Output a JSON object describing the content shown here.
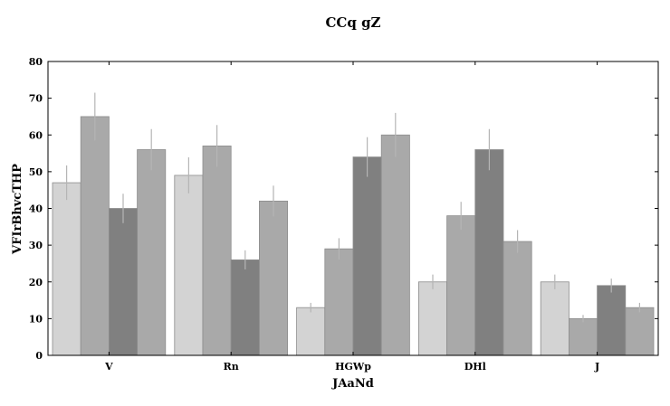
{
  "chart_data": {
    "type": "bar",
    "title": "CCq gZ",
    "xlabel": "JAaNd",
    "ylabel": "VFIrBhvcTHP",
    "categories": [
      "V",
      "Rn",
      "HGWp",
      "DHl",
      "J"
    ],
    "ylim": [
      0,
      80
    ],
    "yticks": [
      0,
      10,
      20,
      30,
      40,
      50,
      60,
      70,
      80
    ],
    "grid": false,
    "legend": "none",
    "series": [
      {
        "color": "#d3d3d3",
        "values": [
          47,
          49,
          13,
          20,
          20
        ],
        "errors": [
          4.7,
          4.9,
          1.3,
          2.0,
          2.0
        ]
      },
      {
        "color": "#a9a9a9",
        "values": [
          65,
          57,
          29,
          38,
          10
        ],
        "errors": [
          6.5,
          5.7,
          2.9,
          3.8,
          1.0
        ]
      },
      {
        "color": "#808080",
        "values": [
          40,
          26,
          54,
          56,
          19
        ],
        "errors": [
          4.0,
          2.6,
          5.4,
          5.6,
          1.9
        ]
      },
      {
        "color": "#a9a9a9",
        "values": [
          56,
          42,
          60,
          31,
          13
        ],
        "errors": [
          5.6,
          4.2,
          6.0,
          3.1,
          1.3
        ]
      }
    ],
    "error_bar_color": "#b5b5b5",
    "edge_color": "#8c8c8c"
  }
}
